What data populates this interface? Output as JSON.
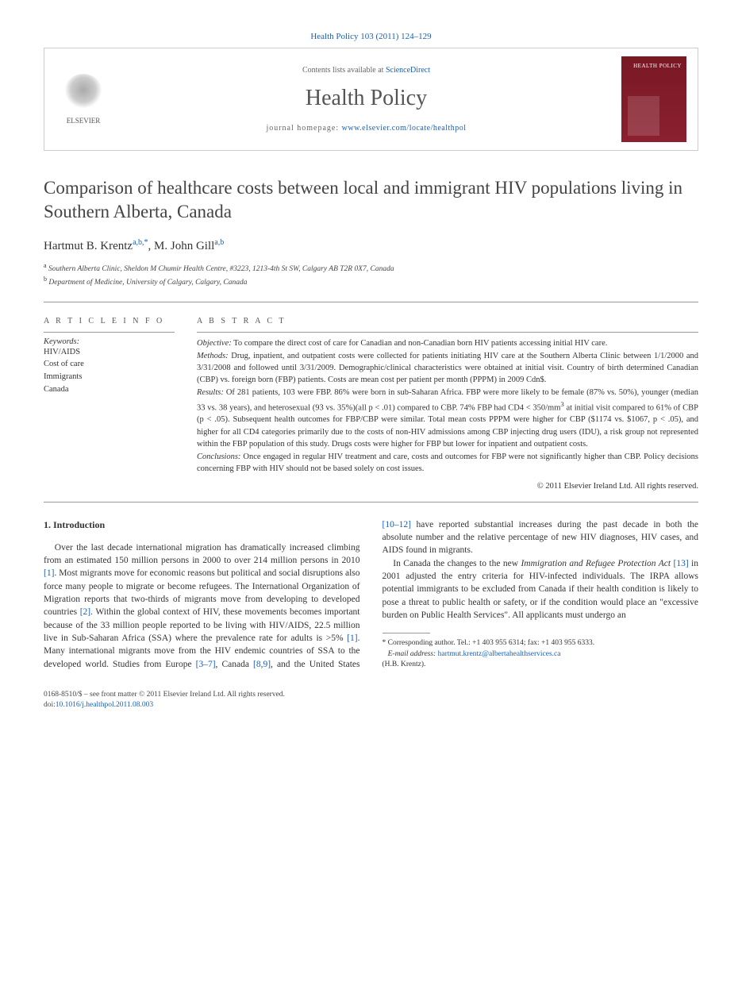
{
  "header": {
    "citation": "Health Policy 103 (2011) 124–129",
    "contents_prefix": "Contents lists available at ",
    "contents_link": "ScienceDirect",
    "journal_name": "Health Policy",
    "homepage_prefix": "journal homepage: ",
    "homepage_link": "www.elsevier.com/locate/healthpol",
    "publisher": "ELSEVIER",
    "cover_title": "HEALTH POLICY"
  },
  "title": "Comparison of healthcare costs between local and immigrant HIV populations living in Southern Alberta, Canada",
  "authors": {
    "a1_name": "Hartmut B. Krentz",
    "a1_sup": "a,b,*",
    "a2_name": "M. John Gill",
    "a2_sup": "a,b"
  },
  "affiliations": {
    "a": "Southern Alberta Clinic, Sheldon M Chumir Health Centre, #3223, 1213-4th St SW, Calgary AB T2R 0X7, Canada",
    "b": "Department of Medicine, University of Calgary, Calgary, Canada"
  },
  "article_info": {
    "section_label": "A R T I C L E   I N F O",
    "keywords_label": "Keywords:",
    "keywords": [
      "HIV/AIDS",
      "Cost of care",
      "Immigrants",
      "Canada"
    ]
  },
  "abstract": {
    "section_label": "A B S T R A C T",
    "objective_label": "Objective:",
    "objective": "To compare the direct cost of care for Canadian and non-Canadian born HIV patients accessing initial HIV care.",
    "methods_label": "Methods:",
    "methods": "Drug, inpatient, and outpatient costs were collected for patients initiating HIV care at the Southern Alberta Clinic between 1/1/2000 and 3/31/2008 and followed until 3/31/2009. Demographic/clinical characteristics were obtained at initial visit. Country of birth determined Canadian (CBP) vs. foreign born (FBP) patients. Costs are mean cost per patient per month (PPPM) in 2009 Cdn$.",
    "results_label": "Results:",
    "results_part1": "Of 281 patients, 103 were FBP. 86% were born in sub-Saharan Africa. FBP were more likely to be female (87% vs. 50%), younger (median 33 vs. 38 years), and heterosexual (93 vs. 35%)(all p < .01) compared to CBP. 74% FBP had CD4 < 350/mm",
    "results_sup": "3",
    "results_part2": " at initial visit compared to 61% of CBP (p < .05). Subsequent health outcomes for FBP/CBP were similar. Total mean costs PPPM were higher for CBP ($1174 vs. $1067, p < .05), and higher for all CD4 categories primarily due to the costs of non-HIV admissions among CBP injecting drug users (IDU), a risk group not represented within the FBP population of this study. Drugs costs were higher for FBP but lower for inpatient and outpatient costs.",
    "conclusions_label": "Conclusions:",
    "conclusions": "Once engaged in regular HIV treatment and care, costs and outcomes for FBP were not significantly higher than CBP. Policy decisions concerning FBP with HIV should not be based solely on cost issues.",
    "copyright": "© 2011 Elsevier Ireland Ltd. All rights reserved."
  },
  "body": {
    "section_heading": "1. Introduction",
    "p1_a": "Over the last decade international migration has dramatically increased climbing from an estimated 150 million persons in 2000 to over 214 million persons in 2010 ",
    "c1": "[1]",
    "p1_b": ". Most migrants move for economic reasons but political and social disruptions also force many people to migrate or become refugees. The International Organization of Migration reports that two-thirds of migrants move from developing to developed countries ",
    "c2": "[2]",
    "p1_c": ". Within the global context of HIV, these movements becomes important because of the 33 million people reported to be living with HIV/AIDS, 22.5 million live in Sub-Saharan Africa (SSA) where the prevalence rate for adults is >5% ",
    "c1b": "[1]",
    "p1_d": ". Many international migrants move from the HIV endemic countries of SSA to the developed world. Studies from Europe ",
    "c3_7": "[3–7]",
    "p1_e": ", Canada ",
    "c8_9": "[8,9]",
    "p1_f": ", and the United States ",
    "c10_12": "[10–12]",
    "p1_g": " have reported substantial increases during the past decade in both the absolute number and the relative percentage of new HIV diagnoses, HIV cases, and AIDS found in migrants.",
    "p2_a": "In Canada the changes to the new ",
    "p2_act": "Immigration and Refugee Protection Act ",
    "c13": "[13]",
    "p2_b": " in 2001 adjusted the entry criteria for HIV-infected individuals. The IRPA allows potential immigrants to be excluded from Canada if their health condition is likely to pose a threat to public health or safety, or if the condition would place an \"excessive burden on Public Health Services\". All applicants must undergo an"
  },
  "footnote": {
    "corr_label": "* Corresponding author. Tel.: +1 403 955 6314; fax: +1 403 955 6333.",
    "email_label": "E-mail address:",
    "email": "hartmut.krentz@albertahealthservices.ca",
    "email_who": "(H.B. Krentz)."
  },
  "footer": {
    "line1": "0168-8510/$ – see front matter © 2011 Elsevier Ireland Ltd. All rights reserved.",
    "doi_label": "doi:",
    "doi": "10.1016/j.healthpol.2011.08.003"
  }
}
